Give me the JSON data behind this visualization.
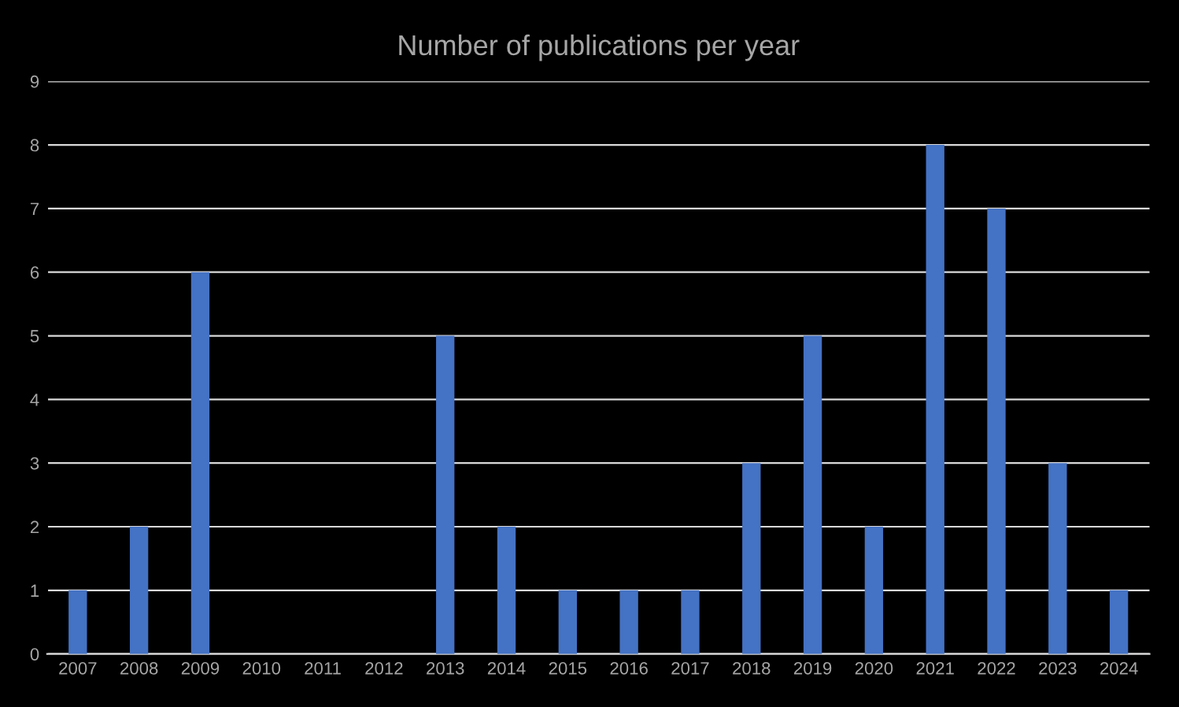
{
  "chart_data": {
    "type": "bar",
    "title": "Number of publications per year",
    "categories": [
      "2007",
      "2008",
      "2009",
      "2010",
      "2011",
      "2012",
      "2013",
      "2014",
      "2015",
      "2016",
      "2017",
      "2018",
      "2019",
      "2020",
      "2021",
      "2022",
      "2023",
      "2024"
    ],
    "values": [
      1,
      2,
      6,
      0,
      0,
      0,
      5,
      2,
      1,
      1,
      1,
      3,
      5,
      2,
      8,
      7,
      3,
      1
    ],
    "color": "#4472c4",
    "ylim": [
      0,
      9
    ],
    "yticks": [
      0,
      1,
      2,
      3,
      4,
      5,
      6,
      7,
      8,
      9
    ],
    "grid": "y",
    "legend": false
  }
}
